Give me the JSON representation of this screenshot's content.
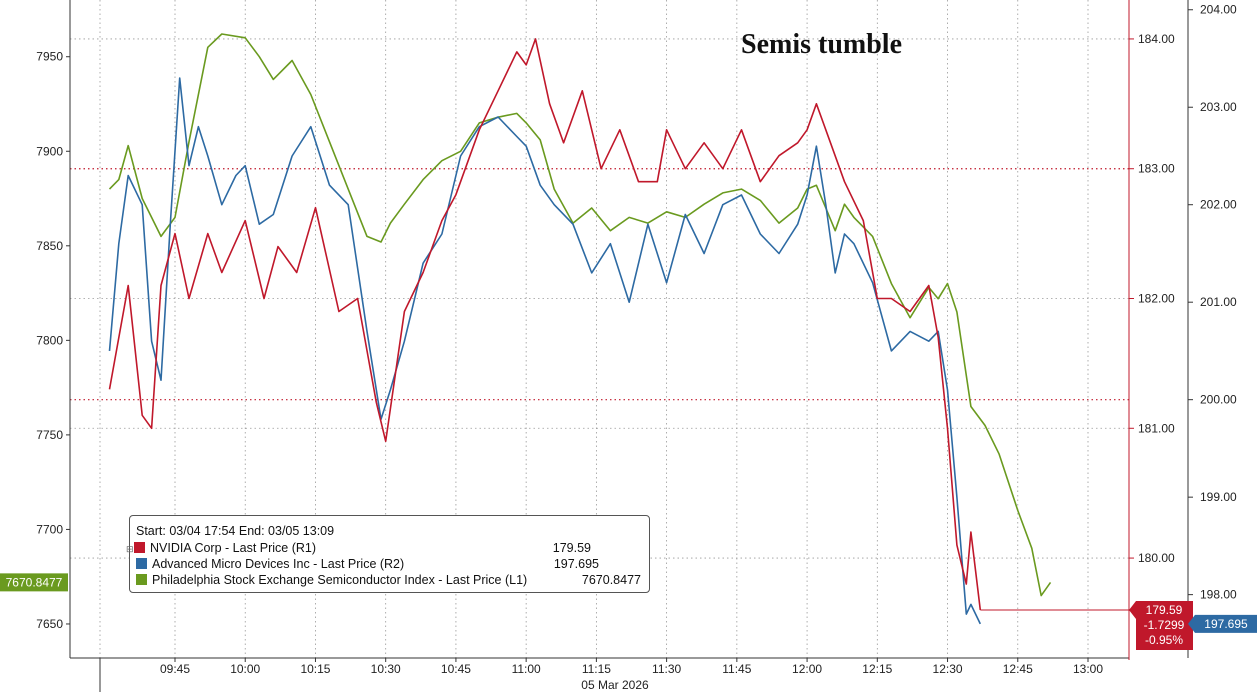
{
  "chart_data": {
    "type": "line",
    "title": "Semis tumble",
    "xlabel": "05 Mar 2026",
    "x_ticks": [
      "09:45",
      "10:00",
      "10:15",
      "10:30",
      "10:45",
      "11:00",
      "11:15",
      "11:30",
      "11:45",
      "12:00",
      "12:15",
      "12:30",
      "12:45",
      "13:00"
    ],
    "x_range": [
      "09:30",
      "13:10"
    ],
    "grid": true,
    "axes": {
      "L1": {
        "ylim": [
          7632,
          7980
        ],
        "ticks": [
          "7650",
          "7700",
          "7750",
          "7800",
          "7850",
          "7900",
          "7950"
        ]
      },
      "R1": {
        "ylim": [
          179.23,
          184.3
        ],
        "ticks": [
          "180.00",
          "181.00",
          "182.00",
          "183.00",
          "184.00"
        ]
      },
      "R2": {
        "ylim": [
          197.35,
          204.1
        ],
        "ticks": [
          "198.00",
          "199.00",
          "200.00",
          "201.00",
          "202.00",
          "203.00",
          "204.00"
        ]
      }
    },
    "legend": {
      "header": "Start: 03/04 17:54 End: 03/05 13:09",
      "placement": "bottom-left",
      "collapse_glyph": "⊟"
    },
    "series": [
      {
        "name": "NVIDIA Corp - Last Price (R1)",
        "axis": "R1",
        "color": "#c0182b",
        "last": "179.59",
        "x": [
          "09:31",
          "09:35",
          "09:38",
          "09:40",
          "09:42",
          "09:45",
          "09:48",
          "09:52",
          "09:55",
          "10:00",
          "10:04",
          "10:07",
          "10:11",
          "10:15",
          "10:20",
          "10:24",
          "10:28",
          "10:30",
          "10:34",
          "10:38",
          "10:42",
          "10:45",
          "10:50",
          "10:54",
          "10:58",
          "11:00",
          "11:02",
          "11:05",
          "11:08",
          "11:12",
          "11:16",
          "11:20",
          "11:24",
          "11:28",
          "11:30",
          "11:34",
          "11:38",
          "11:42",
          "11:46",
          "11:50",
          "11:54",
          "11:58",
          "12:00",
          "12:02",
          "12:04",
          "12:08",
          "12:12",
          "12:15",
          "12:18",
          "12:22",
          "12:26",
          "12:28",
          "12:30",
          "12:32",
          "12:34",
          "12:35",
          "12:36",
          "12:37"
        ],
        "values": [
          181.3,
          182.1,
          181.1,
          181.0,
          182.1,
          182.5,
          182.0,
          182.5,
          182.2,
          182.6,
          182.0,
          182.4,
          182.2,
          182.7,
          181.9,
          182.0,
          181.2,
          180.9,
          181.9,
          182.2,
          182.6,
          182.8,
          183.3,
          183.6,
          183.9,
          183.8,
          184.0,
          183.5,
          183.2,
          183.6,
          183.0,
          183.3,
          182.9,
          182.9,
          183.3,
          183.0,
          183.2,
          183.0,
          183.3,
          182.9,
          183.1,
          183.2,
          183.3,
          183.5,
          183.3,
          182.9,
          182.6,
          182.0,
          182.0,
          181.9,
          182.1,
          181.7,
          181.0,
          180.1,
          179.8,
          180.2,
          179.9,
          179.6
        ]
      },
      {
        "name": "Advanced Micro Devices Inc - Last Price (R2)",
        "axis": "R2",
        "color": "#2d6aa3",
        "last": "197.695",
        "x": [
          "09:31",
          "09:33",
          "09:35",
          "09:38",
          "09:40",
          "09:42",
          "09:44",
          "09:46",
          "09:48",
          "09:50",
          "09:52",
          "09:55",
          "09:58",
          "10:00",
          "10:03",
          "10:06",
          "10:10",
          "10:14",
          "10:18",
          "10:22",
          "10:26",
          "10:29",
          "10:31",
          "10:34",
          "10:38",
          "10:42",
          "10:46",
          "10:50",
          "10:54",
          "10:58",
          "11:00",
          "11:03",
          "11:06",
          "11:10",
          "11:14",
          "11:18",
          "11:22",
          "11:26",
          "11:30",
          "11:34",
          "11:38",
          "11:42",
          "11:46",
          "11:50",
          "11:54",
          "11:58",
          "12:00",
          "12:02",
          "12:04",
          "12:06",
          "12:08",
          "12:10",
          "12:14",
          "12:18",
          "12:22",
          "12:26",
          "12:28",
          "12:30",
          "12:32",
          "12:34",
          "12:35",
          "12:37"
        ],
        "values": [
          200.5,
          201.6,
          202.3,
          202.0,
          200.6,
          200.2,
          201.8,
          203.3,
          202.4,
          202.8,
          202.5,
          202.0,
          202.3,
          202.4,
          201.8,
          201.9,
          202.5,
          202.8,
          202.2,
          202.0,
          200.7,
          199.8,
          200.1,
          200.6,
          201.4,
          201.7,
          202.5,
          202.8,
          202.9,
          202.7,
          202.6,
          202.2,
          202.0,
          201.8,
          201.3,
          201.6,
          201.0,
          201.8,
          201.2,
          201.9,
          201.5,
          202.0,
          202.1,
          201.7,
          201.5,
          201.8,
          202.1,
          202.6,
          202.0,
          201.3,
          201.7,
          201.6,
          201.2,
          200.5,
          200.7,
          200.6,
          200.7,
          200.1,
          199.0,
          197.8,
          197.9,
          197.7
        ]
      },
      {
        "name": "Philadelphia Stock Exchange Semiconductor Index - Last Price (L1)",
        "axis": "L1",
        "color": "#6a9a1f",
        "last": "7670.8477",
        "x": [
          "09:31",
          "09:33",
          "09:35",
          "09:38",
          "09:40",
          "09:42",
          "09:45",
          "09:48",
          "09:52",
          "09:55",
          "10:00",
          "10:03",
          "10:06",
          "10:10",
          "10:14",
          "10:18",
          "10:22",
          "10:26",
          "10:29",
          "10:31",
          "10:34",
          "10:38",
          "10:42",
          "10:46",
          "10:50",
          "10:54",
          "10:58",
          "11:00",
          "11:03",
          "11:06",
          "11:10",
          "11:14",
          "11:18",
          "11:22",
          "11:26",
          "11:30",
          "11:34",
          "11:38",
          "11:42",
          "11:46",
          "11:50",
          "11:54",
          "11:58",
          "12:00",
          "12:02",
          "12:04",
          "12:06",
          "12:08",
          "12:10",
          "12:14",
          "12:18",
          "12:22",
          "12:26",
          "12:28",
          "12:30",
          "12:32",
          "12:35",
          "12:38",
          "12:41",
          "12:45",
          "12:48",
          "12:50",
          "12:52"
        ],
        "values": [
          7880,
          7885,
          7903,
          7875,
          7865,
          7855,
          7865,
          7905,
          7955,
          7962,
          7960,
          7950,
          7938,
          7948,
          7930,
          7905,
          7880,
          7855,
          7852,
          7862,
          7872,
          7885,
          7895,
          7900,
          7915,
          7918,
          7920,
          7915,
          7906,
          7880,
          7862,
          7870,
          7858,
          7865,
          7862,
          7868,
          7865,
          7872,
          7878,
          7880,
          7874,
          7862,
          7870,
          7880,
          7882,
          7870,
          7858,
          7872,
          7865,
          7855,
          7830,
          7812,
          7828,
          7822,
          7830,
          7815,
          7765,
          7755,
          7740,
          7710,
          7690,
          7665,
          7672
        ]
      }
    ],
    "last_value_labels": {
      "L1": "7670.8477",
      "R1": [
        "179.59",
        "-1.7299",
        "-0.95%"
      ],
      "R2": "197.695"
    }
  }
}
